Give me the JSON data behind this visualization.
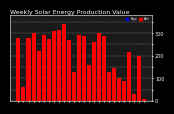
{
  "title": "Weekly Solar Energy Production Value",
  "bar_values": [
    280,
    60,
    280,
    300,
    220,
    290,
    275,
    310,
    315,
    340,
    270,
    130,
    290,
    285,
    160,
    260,
    300,
    285,
    130,
    145,
    100,
    90,
    215,
    30,
    200,
    10
  ],
  "bar_colors": [
    "#ff0000",
    "#ff0000",
    "#ff0000",
    "#ff0000",
    "#ff0000",
    "#ff0000",
    "#ff0000",
    "#ff0000",
    "#ff0000",
    "#ff0000",
    "#ff0000",
    "#ff0000",
    "#ff0000",
    "#ff0000",
    "#ff0000",
    "#ff0000",
    "#ff0000",
    "#ff0000",
    "#ff0000",
    "#ff0000",
    "#ff0000",
    "#ff0000",
    "#ff0000",
    "#ff0000",
    "#ff0000",
    "#ff0000"
  ],
  "ylim": [
    0,
    380
  ],
  "yticks": [
    0,
    50,
    100,
    150,
    200,
    250,
    300,
    350
  ],
  "ytick_labels": [
    "0",
    "",
    "100",
    "",
    "200",
    "",
    "300",
    ""
  ],
  "background_color": "#000000",
  "plot_bg": "#1a1a1a",
  "grid_color": "#ffffff",
  "legend_blue": "#0000ff",
  "legend_red": "#ff0000",
  "title_color": "#ffffff",
  "title_fontsize": 4.5,
  "tick_fontsize": 3.5
}
